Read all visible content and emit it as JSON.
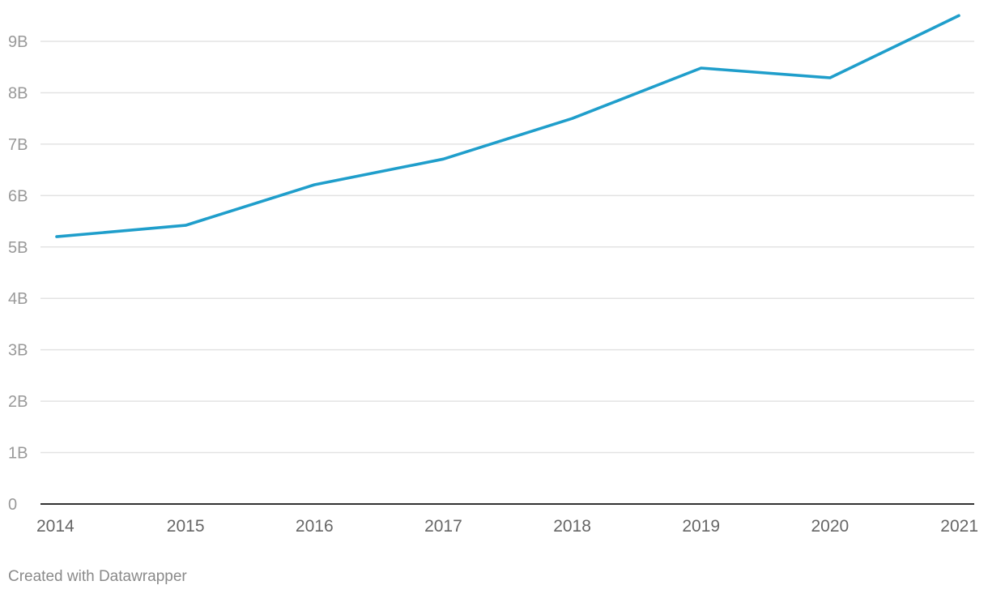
{
  "chart_data": {
    "type": "line",
    "title": "",
    "xlabel": "",
    "ylabel": "",
    "x": [
      "2014",
      "2015",
      "2016",
      "2017",
      "2018",
      "2019",
      "2020",
      "2021"
    ],
    "series": [
      {
        "name": "Value",
        "color": "#1f9ecb",
        "values": [
          5.2,
          5.42,
          6.21,
          6.71,
          7.5,
          8.48,
          8.29,
          9.5
        ]
      }
    ],
    "ylim": [
      0,
      9.5
    ],
    "yticks": [
      0,
      1,
      2,
      3,
      4,
      5,
      6,
      7,
      8,
      9
    ],
    "ytick_labels": [
      "0",
      "1B",
      "2B",
      "3B",
      "4B",
      "5B",
      "6B",
      "7B",
      "8B",
      "9B"
    ],
    "grid": true
  },
  "footer": {
    "credit": "Created with Datawrapper"
  }
}
